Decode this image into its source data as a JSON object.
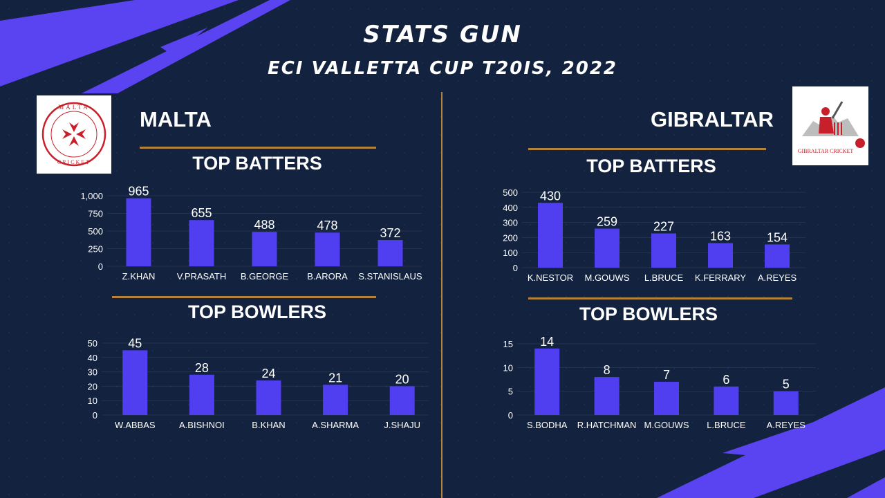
{
  "header": {
    "title": "STATS GUN",
    "subtitle": "ECI VALLETTA CUP T20IS, 2022"
  },
  "colors": {
    "background": "#13223f",
    "bar": "#4f3ff0",
    "accent_line": "#b4823a",
    "decoration": "#5a44f2"
  },
  "teams": {
    "left": {
      "name": "MALTA",
      "logo_text": "MALTA CRICKET",
      "batters_title": "TOP BATTERS",
      "bowlers_title": "TOP BOWLERS"
    },
    "right": {
      "name": "GIBRALTAR",
      "logo_text": "GIBRALTAR CRICKET",
      "batters_title": "TOP BATTERS",
      "bowlers_title": "TOP BOWLERS"
    }
  },
  "chart_data": [
    {
      "id": "malta-batters",
      "type": "bar",
      "categories": [
        "Z.KHAN",
        "V.PRASATH",
        "B.GEORGE",
        "B.ARORA",
        "S.STANISLAUS"
      ],
      "values": [
        965,
        655,
        488,
        478,
        372
      ],
      "value_labels": [
        "965",
        "655",
        "488",
        "478",
        "372"
      ],
      "ylim": [
        0,
        1000
      ],
      "yticks": [
        0,
        250,
        500,
        750,
        1000
      ],
      "ytick_labels": [
        "0",
        "250",
        "500",
        "750",
        "1,000"
      ]
    },
    {
      "id": "malta-bowlers",
      "type": "bar",
      "categories": [
        "W.ABBAS",
        "A.BISHNOI",
        "B.KHAN",
        "A.SHARMA",
        "J.SHAJU"
      ],
      "values": [
        45,
        28,
        24,
        21,
        20
      ],
      "value_labels": [
        "45",
        "28",
        "24",
        "21",
        "20"
      ],
      "ylim": [
        0,
        50
      ],
      "yticks": [
        0,
        10,
        20,
        30,
        40,
        50
      ],
      "ytick_labels": [
        "0",
        "10",
        "20",
        "30",
        "40",
        "50"
      ]
    },
    {
      "id": "gibraltar-batters",
      "type": "bar",
      "categories": [
        "K.NESTOR",
        "M.GOUWS",
        "L.BRUCE",
        "K.FERRARY",
        "A.REYES"
      ],
      "values": [
        430,
        259,
        227,
        163,
        154
      ],
      "value_labels": [
        "430",
        "259",
        "227",
        "163",
        "154"
      ],
      "ylim": [
        0,
        500
      ],
      "yticks": [
        0,
        100,
        200,
        300,
        400,
        500
      ],
      "ytick_labels": [
        "0",
        "100",
        "200",
        "300",
        "400",
        "500"
      ]
    },
    {
      "id": "gibraltar-bowlers",
      "type": "bar",
      "categories": [
        "S.BODHA",
        "R.HATCHMAN",
        "M.GOUWS",
        "L.BRUCE",
        "A.REYES"
      ],
      "values": [
        14,
        8,
        7,
        6,
        5
      ],
      "value_labels": [
        "14",
        "8",
        "7",
        "6",
        "5"
      ],
      "ylim": [
        0,
        15
      ],
      "yticks": [
        0,
        5,
        10,
        15
      ],
      "ytick_labels": [
        "0",
        "5",
        "10",
        "15"
      ]
    }
  ]
}
